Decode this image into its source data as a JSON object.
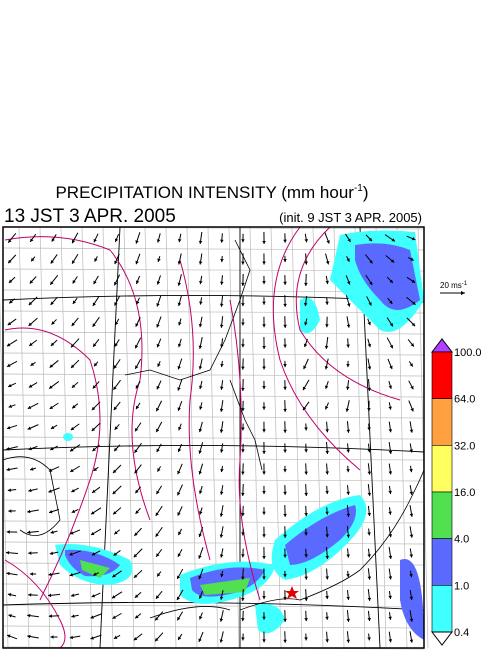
{
  "title": {
    "main": "PRECIPITATION INTENSITY (mm hour",
    "superscript": "-1",
    "end": ")"
  },
  "valid_time": "13 JST 3 APR. 2005",
  "init_time": "(init. 9 JST 3 APR. 2005)",
  "vector_scale": {
    "label": "20 ms",
    "superscript": "-1"
  },
  "colorbar": {
    "labels": [
      "100.0",
      "64.0",
      "32.0",
      "16.0",
      "4.0",
      "1.0",
      "0.4"
    ],
    "colors": [
      "#ff0000",
      "#ffa040",
      "#ffff60",
      "#50e050",
      "#5a6aff",
      "#40ffff"
    ],
    "over_color": "#b040ff",
    "under_color": "#ffffff"
  }
}
